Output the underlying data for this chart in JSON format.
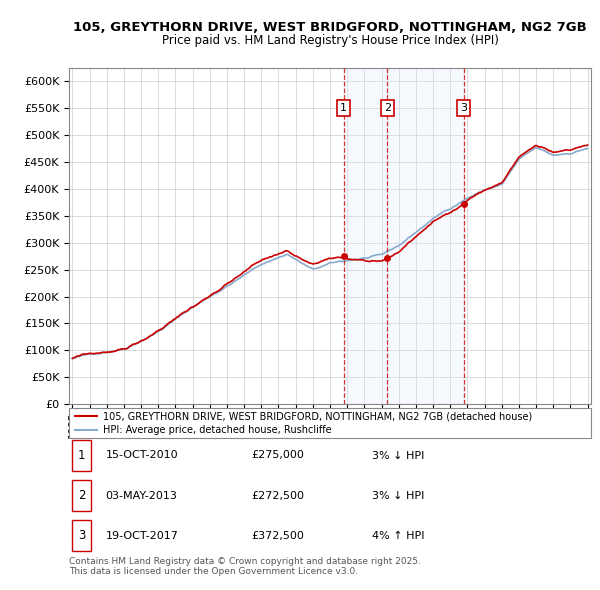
{
  "title_line1": "105, GREYTHORN DRIVE, WEST BRIDGFORD, NOTTINGHAM, NG2 7GB",
  "title_line2": "Price paid vs. HM Land Registry's House Price Index (HPI)",
  "ylim": [
    0,
    625000
  ],
  "yticks": [
    0,
    50000,
    100000,
    150000,
    200000,
    250000,
    300000,
    350000,
    400000,
    450000,
    500000,
    550000,
    600000
  ],
  "ytick_labels": [
    "£0",
    "£50K",
    "£100K",
    "£150K",
    "£200K",
    "£250K",
    "£300K",
    "£350K",
    "£400K",
    "£450K",
    "£500K",
    "£550K",
    "£600K"
  ],
  "x_start_year": 1995,
  "x_end_year": 2025,
  "sale_dates_decimal": [
    2010.79,
    2013.34,
    2017.79
  ],
  "sale_prices": [
    275000,
    272500,
    372500
  ],
  "sale_labels": [
    "1",
    "2",
    "3"
  ],
  "legend_line1": "105, GREYTHORN DRIVE, WEST BRIDGFORD, NOTTINGHAM, NG2 7GB (detached house)",
  "legend_line2": "HPI: Average price, detached house, Rushcliffe",
  "table_rows": [
    [
      "1",
      "15-OCT-2010",
      "£275,000",
      "3% ↓ HPI"
    ],
    [
      "2",
      "03-MAY-2013",
      "£272,500",
      "3% ↓ HPI"
    ],
    [
      "3",
      "19-OCT-2017",
      "£372,500",
      "4% ↑ HPI"
    ]
  ],
  "footnote": "Contains HM Land Registry data © Crown copyright and database right 2025.\nThis data is licensed under the Open Government Licence v3.0.",
  "red_line_color": "#cc0000",
  "blue_line_color": "#88aacc",
  "highlight_color": "#ddeeff",
  "grid_color": "#cccccc",
  "background_color": "#ffffff"
}
